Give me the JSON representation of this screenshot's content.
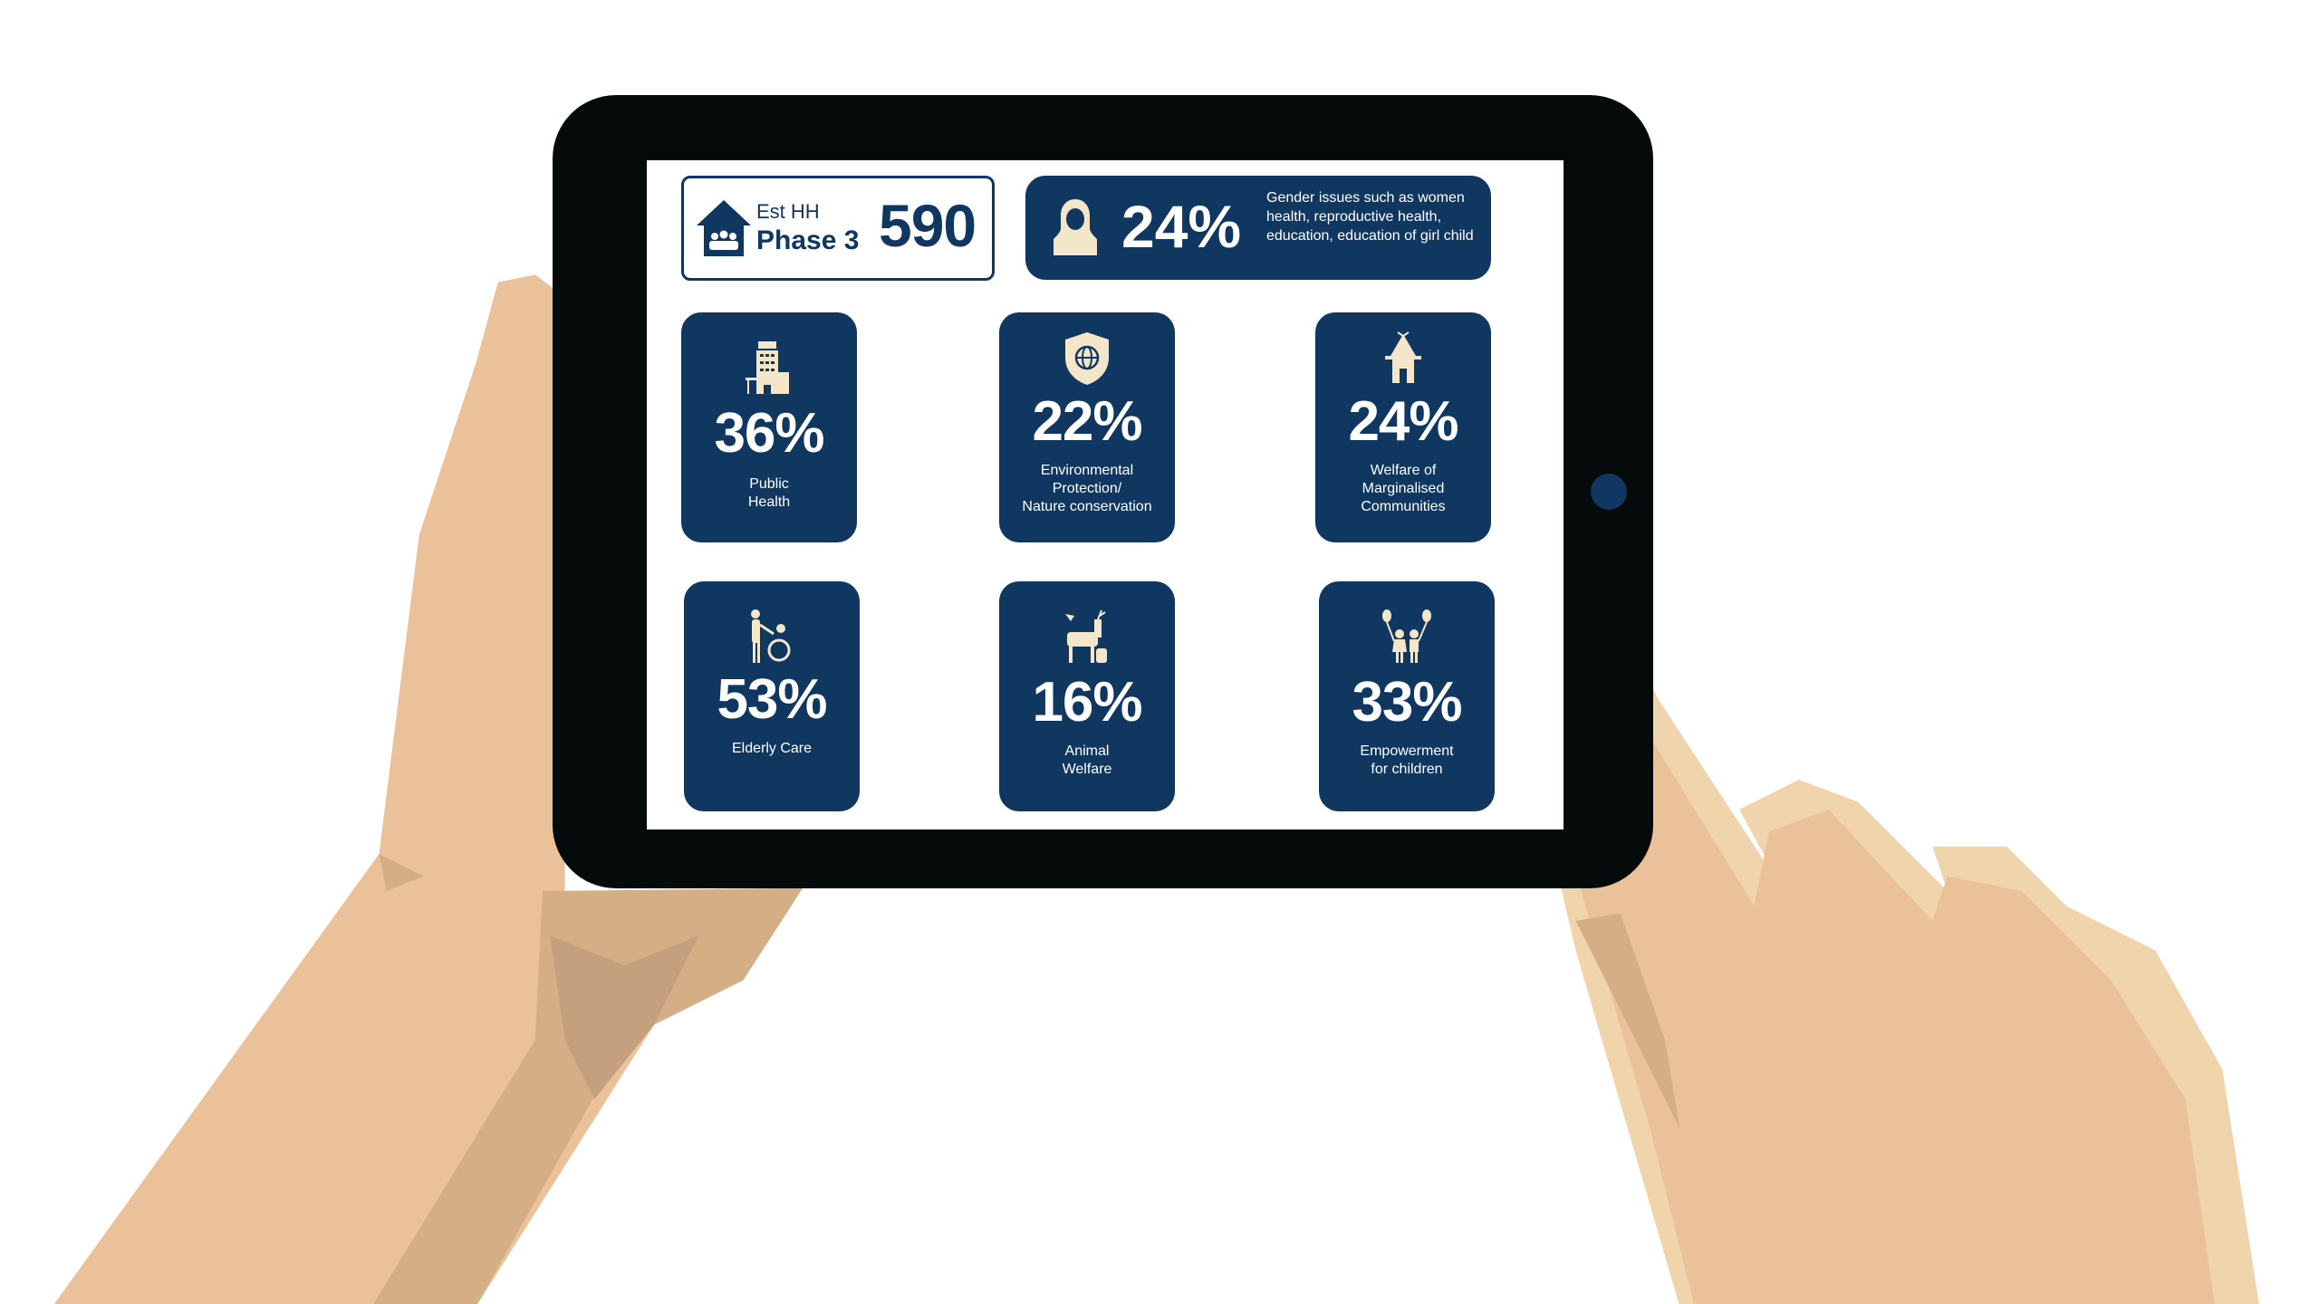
{
  "colors": {
    "navy": "#0f3760",
    "cream": "#f3e6c9",
    "skin": "#ebc199",
    "skin_shadow": "#d4ae85",
    "tablet": "#050a0a"
  },
  "household": {
    "icon": "house-people-icon",
    "label": "Est HH",
    "phase": "Phase 3",
    "value": "590"
  },
  "gender": {
    "icon": "woman-hijab-icon",
    "percent": "24%",
    "description": "Gender issues such as women health, reproductive health, education, education of girl child"
  },
  "tiles": [
    {
      "icon": "hospital-icon",
      "percent": "36%",
      "label": "Public\nHealth"
    },
    {
      "icon": "shield-globe-icon",
      "percent": "22%",
      "label": "Environmental\nProtection/\nNature conservation"
    },
    {
      "icon": "hut-icon",
      "percent": "24%",
      "label": "Welfare of\nMarginalised\nCommunities"
    },
    {
      "icon": "wheelchair-care-icon",
      "percent": "53%",
      "label": "Elderly Care"
    },
    {
      "icon": "animals-icon",
      "percent": "16%",
      "label": "Animal\nWelfare"
    },
    {
      "icon": "children-balloons-icon",
      "percent": "33%",
      "label": "Empowerment\nfor children"
    }
  ]
}
